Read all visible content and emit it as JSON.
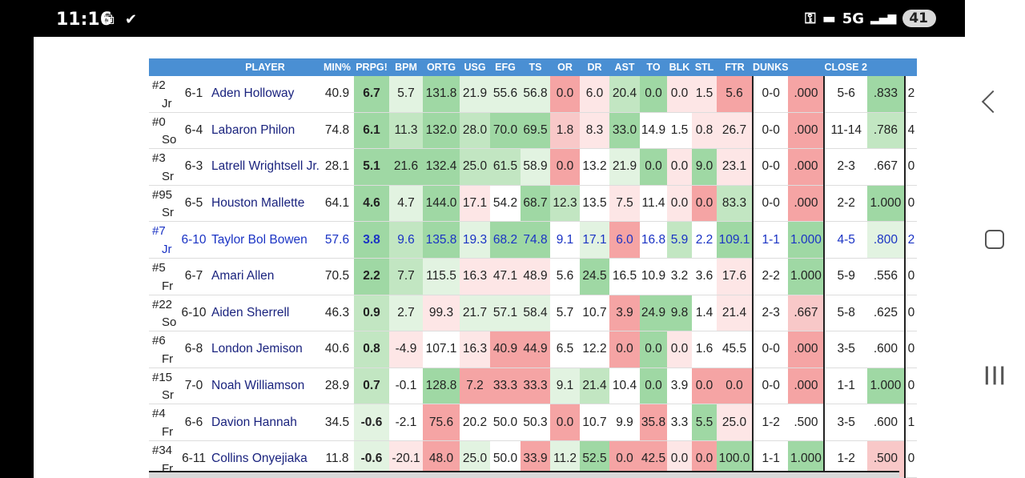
{
  "status": {
    "time": "11:16",
    "network": "5G",
    "battery": "41"
  },
  "table": {
    "headers": [
      "",
      "",
      "PLAYER",
      "MIN%",
      "PRPG!",
      "BPM",
      "ORTG",
      "USG",
      "EFG",
      "TS",
      "OR",
      "DR",
      "AST",
      "TO",
      "BLK",
      "STL",
      "FTR",
      "DUNKS",
      "",
      "CLOSE 2",
      "",
      ""
    ],
    "rows": [
      {
        "num": "#2",
        "cls": "Jr",
        "ht": "6-1",
        "name": "Aden Holloway",
        "min": "40.9",
        "prpg": "6.7",
        "bpm": "5.7",
        "ortg": "131.8",
        "usg": "21.9",
        "efg": "55.6",
        "ts": "56.8",
        "or": "0.0",
        "dr": "6.0",
        "ast": "20.4",
        "to": "0.0",
        "blk": "0.0",
        "stl": "1.5",
        "ftr": "5.6",
        "dunks": "0-0",
        "dpct": ".000",
        "c2": "5-6",
        "c2pct": ".833",
        "extra": "2"
      },
      {
        "num": "#0",
        "cls": "So",
        "ht": "6-4",
        "name": "Labaron Philon",
        "min": "74.8",
        "prpg": "6.1",
        "bpm": "11.3",
        "ortg": "132.0",
        "usg": "28.0",
        "efg": "70.0",
        "ts": "69.5",
        "or": "1.8",
        "dr": "8.3",
        "ast": "33.0",
        "to": "14.9",
        "blk": "1.5",
        "stl": "0.8",
        "ftr": "26.7",
        "dunks": "0-0",
        "dpct": ".000",
        "c2": "11-14",
        "c2pct": ".786",
        "extra": "4"
      },
      {
        "num": "#3",
        "cls": "Sr",
        "ht": "6-3",
        "name": "Latrell Wrightsell Jr.",
        "min": "28.1",
        "prpg": "5.1",
        "bpm": "21.6",
        "ortg": "132.4",
        "usg": "25.0",
        "efg": "61.5",
        "ts": "58.9",
        "or": "0.0",
        "dr": "13.2",
        "ast": "21.9",
        "to": "0.0",
        "blk": "0.0",
        "stl": "9.0",
        "ftr": "23.1",
        "dunks": "0-0",
        "dpct": ".000",
        "c2": "2-3",
        "c2pct": ".667",
        "extra": "0"
      },
      {
        "num": "#95",
        "cls": "Sr",
        "ht": "6-5",
        "name": "Houston Mallette",
        "min": "64.1",
        "prpg": "4.6",
        "bpm": "4.7",
        "ortg": "144.0",
        "usg": "17.1",
        "efg": "54.2",
        "ts": "68.7",
        "or": "12.3",
        "dr": "13.5",
        "ast": "7.5",
        "to": "11.4",
        "blk": "0.0",
        "stl": "0.0",
        "ftr": "83.3",
        "dunks": "0-0",
        "dpct": ".000",
        "c2": "2-2",
        "c2pct": "1.000",
        "extra": "0"
      },
      {
        "num": "#7",
        "cls": "Jr",
        "ht": "6-10",
        "name": "Taylor Bol Bowen",
        "min": "57.6",
        "prpg": "3.8",
        "bpm": "9.6",
        "ortg": "135.8",
        "usg": "19.3",
        "efg": "68.2",
        "ts": "74.8",
        "or": "9.1",
        "dr": "17.1",
        "ast": "6.0",
        "to": "16.8",
        "blk": "5.9",
        "stl": "2.2",
        "ftr": "109.1",
        "dunks": "1-1",
        "dpct": "1.000",
        "c2": "4-5",
        "c2pct": ".800",
        "extra": "2"
      },
      {
        "num": "#5",
        "cls": "Fr",
        "ht": "6-7",
        "name": "Amari Allen",
        "min": "70.5",
        "prpg": "2.2",
        "bpm": "7.7",
        "ortg": "115.5",
        "usg": "16.3",
        "efg": "47.1",
        "ts": "48.9",
        "or": "5.6",
        "dr": "24.5",
        "ast": "16.5",
        "to": "10.9",
        "blk": "3.2",
        "stl": "3.6",
        "ftr": "17.6",
        "dunks": "2-2",
        "dpct": "1.000",
        "c2": "5-9",
        "c2pct": ".556",
        "extra": "0"
      },
      {
        "num": "#22",
        "cls": "So",
        "ht": "6-10",
        "name": "Aiden Sherrell",
        "min": "46.3",
        "prpg": "0.9",
        "bpm": "2.7",
        "ortg": "99.3",
        "usg": "21.7",
        "efg": "57.1",
        "ts": "58.4",
        "or": "5.7",
        "dr": "10.7",
        "ast": "3.9",
        "to": "24.9",
        "blk": "9.8",
        "stl": "1.4",
        "ftr": "21.4",
        "dunks": "2-3",
        "dpct": ".667",
        "c2": "5-8",
        "c2pct": ".625",
        "extra": "0"
      },
      {
        "num": "#6",
        "cls": "Fr",
        "ht": "6-8",
        "name": "London Jemison",
        "min": "40.6",
        "prpg": "0.8",
        "bpm": "-4.9",
        "ortg": "107.1",
        "usg": "16.3",
        "efg": "40.9",
        "ts": "44.9",
        "or": "6.5",
        "dr": "12.2",
        "ast": "0.0",
        "to": "0.0",
        "blk": "0.0",
        "stl": "1.6",
        "ftr": "45.5",
        "dunks": "0-0",
        "dpct": ".000",
        "c2": "3-5",
        "c2pct": ".600",
        "extra": "0"
      },
      {
        "num": "#15",
        "cls": "Sr",
        "ht": "7-0",
        "name": "Noah Williamson",
        "min": "28.9",
        "prpg": "0.7",
        "bpm": "-0.1",
        "ortg": "128.8",
        "usg": "7.2",
        "efg": "33.3",
        "ts": "33.3",
        "or": "9.1",
        "dr": "21.4",
        "ast": "10.4",
        "to": "0.0",
        "blk": "3.9",
        "stl": "0.0",
        "ftr": "0.0",
        "dunks": "0-0",
        "dpct": ".000",
        "c2": "1-1",
        "c2pct": "1.000",
        "extra": "0"
      },
      {
        "num": "#4",
        "cls": "Fr",
        "ht": "6-6",
        "name": "Davion Hannah",
        "min": "34.5",
        "prpg": "-0.6",
        "bpm": "-2.1",
        "ortg": "75.6",
        "usg": "20.2",
        "efg": "50.0",
        "ts": "50.3",
        "or": "0.0",
        "dr": "10.7",
        "ast": "9.9",
        "to": "35.8",
        "blk": "3.3",
        "stl": "5.5",
        "ftr": "25.0",
        "dunks": "1-2",
        "dpct": ".500",
        "c2": "3-5",
        "c2pct": ".600",
        "extra": "1"
      },
      {
        "num": "#34",
        "cls": "Fr",
        "ht": "6-11",
        "name": "Collins Onyejiaka",
        "min": "11.8",
        "prpg": "-0.6",
        "bpm": "-20.1",
        "ortg": "48.0",
        "usg": "25.0",
        "efg": "50.0",
        "ts": "33.9",
        "or": "11.2",
        "dr": "52.5",
        "ast": "0.0",
        "to": "42.5",
        "blk": "0.0",
        "stl": "0.0",
        "ftr": "100.0",
        "dunks": "1-1",
        "dpct": "1.000",
        "c2": "1-2",
        "c2pct": ".500",
        "extra": "0"
      }
    ],
    "colors": [
      {
        "prpg": "g1",
        "bpm": "g3",
        "ortg": "g1",
        "usg": "g3",
        "efg": "g3",
        "ts": "g3",
        "or": "r1",
        "dr": "r3",
        "ast": "g2",
        "to": "g1",
        "blk": "r3",
        "stl": "r3",
        "ftr": "r1",
        "dpct": "r1",
        "c2pct": "g1"
      },
      {
        "prpg": "g1",
        "bpm": "g2",
        "ortg": "g1",
        "usg": "g2",
        "efg": "g1",
        "ts": "g1",
        "or": "r2",
        "dr": "r3",
        "ast": "g1",
        "to": "w",
        "blk": "w",
        "stl": "r3",
        "ftr": "r3",
        "dpct": "r1",
        "c2pct": "g2"
      },
      {
        "prpg": "g1",
        "bpm": "g1",
        "ortg": "g1",
        "usg": "g2",
        "efg": "g2",
        "ts": "g3",
        "or": "r1",
        "dr": "w",
        "ast": "g3",
        "to": "g1",
        "blk": "r3",
        "stl": "g1",
        "ftr": "r3",
        "dpct": "r1",
        "c2pct": "w"
      },
      {
        "prpg": "g1",
        "bpm": "g3",
        "ortg": "g1",
        "usg": "r3",
        "efg": "w",
        "ts": "g1",
        "or": "g2",
        "dr": "w",
        "ast": "r3",
        "to": "w",
        "blk": "r3",
        "stl": "r1",
        "ftr": "g2",
        "dpct": "r1",
        "c2pct": "g1"
      },
      {
        "prpg": "g1",
        "bpm": "g2",
        "ortg": "g1",
        "usg": "g3",
        "efg": "g1",
        "ts": "g1",
        "or": "w",
        "dr": "g3",
        "ast": "r1",
        "to": "w",
        "blk": "g2",
        "stl": "w",
        "ftr": "g1",
        "dpct": "g1",
        "c2pct": "g3"
      },
      {
        "prpg": "g1",
        "bpm": "g2",
        "ortg": "g3",
        "usg": "r3",
        "efg": "r3",
        "ts": "r3",
        "or": "w",
        "dr": "g1",
        "ast": "w",
        "to": "w",
        "blk": "w",
        "stl": "w",
        "ftr": "r3",
        "dpct": "g1",
        "c2pct": "w"
      },
      {
        "prpg": "g2",
        "bpm": "g3",
        "ortg": "r3",
        "usg": "g3",
        "efg": "g3",
        "ts": "g3",
        "or": "w",
        "dr": "w",
        "ast": "r1",
        "to": "g1",
        "blk": "g1",
        "stl": "w",
        "ftr": "r3",
        "dpct": "r2",
        "c2pct": "w"
      },
      {
        "prpg": "g2",
        "bpm": "r3",
        "ortg": "w",
        "usg": "r3",
        "efg": "r1",
        "ts": "r1",
        "or": "w",
        "dr": "w",
        "ast": "r1",
        "to": "g1",
        "blk": "r3",
        "stl": "w",
        "ftr": "w",
        "dpct": "r1",
        "c2pct": "w"
      },
      {
        "prpg": "g2",
        "bpm": "w",
        "ortg": "g1",
        "usg": "r1",
        "efg": "r1",
        "ts": "r1",
        "or": "g3",
        "dr": "g2",
        "ast": "w",
        "to": "g1",
        "blk": "w",
        "stl": "r1",
        "ftr": "r1",
        "dpct": "r1",
        "c2pct": "g1"
      },
      {
        "prpg": "g3",
        "bpm": "w",
        "ortg": "r1",
        "usg": "w",
        "efg": "w",
        "ts": "w",
        "or": "r1",
        "dr": "w",
        "ast": "w",
        "to": "r1",
        "blk": "w",
        "stl": "g1",
        "ftr": "r3",
        "dpct": "w",
        "c2pct": "w"
      },
      {
        "prpg": "g3",
        "bpm": "r3",
        "ortg": "r1",
        "usg": "g3",
        "efg": "w",
        "ts": "r1",
        "or": "g3",
        "dr": "g1",
        "ast": "r1",
        "to": "r1",
        "blk": "r3",
        "stl": "r1",
        "ftr": "g1",
        "dpct": "g1",
        "c2pct": "r2"
      }
    ],
    "highlight_row": 4
  }
}
